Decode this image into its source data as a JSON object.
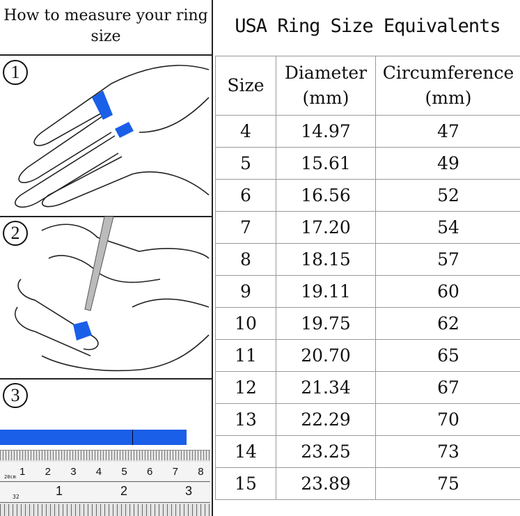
{
  "left_panel": {
    "heading": "How to measure your ring size",
    "steps": [
      "1",
      "2",
      "3"
    ],
    "tape_color": "#1a5fe8",
    "ruler_top_labels": [
      "1",
      "2",
      "3",
      "4",
      "5",
      "6",
      "7",
      "8"
    ],
    "ruler_top_unit": "20cm",
    "ruler_bottom_labels": [
      "1",
      "2",
      "3"
    ],
    "ruler_bottom_start": "32"
  },
  "table": {
    "title": "USA Ring Size Equivalents",
    "headers": [
      {
        "line1": "Size",
        "line2": ""
      },
      {
        "line1": "Diameter",
        "line2": "(mm)"
      },
      {
        "line1": "Circumference",
        "line2": "(mm)"
      }
    ],
    "rows": [
      [
        "4",
        "14.97",
        "47"
      ],
      [
        "5",
        "15.61",
        "49"
      ],
      [
        "6",
        "16.56",
        "52"
      ],
      [
        "7",
        "17.20",
        "54"
      ],
      [
        "8",
        "18.15",
        "57"
      ],
      [
        "9",
        "19.11",
        "60"
      ],
      [
        "10",
        "19.75",
        "62"
      ],
      [
        "11",
        "20.70",
        "65"
      ],
      [
        "12",
        "21.34",
        "67"
      ],
      [
        "13",
        "22.29",
        "70"
      ],
      [
        "14",
        "23.25",
        "73"
      ],
      [
        "15",
        "23.89",
        "75"
      ]
    ]
  }
}
